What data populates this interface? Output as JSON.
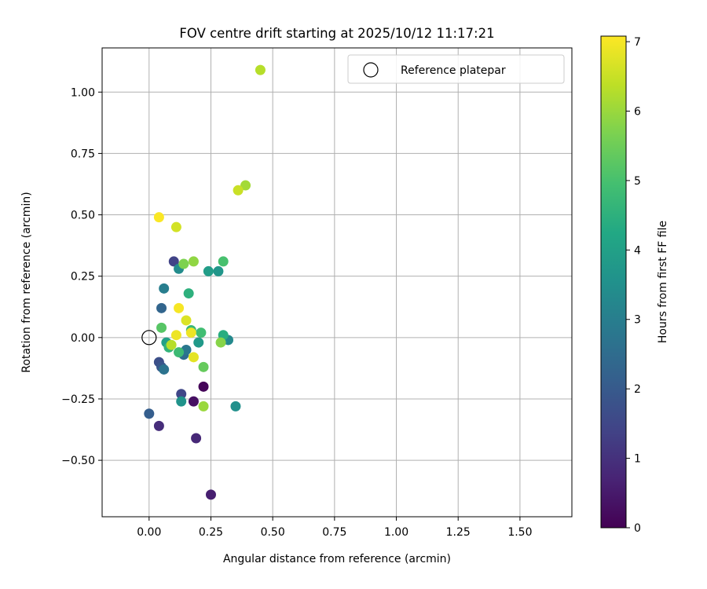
{
  "chart_data": {
    "type": "scatter",
    "title": "FOV centre drift starting at 2025/10/12 11:17:21",
    "xlabel": "Angular distance from reference (arcmin)",
    "ylabel": "Rotation from reference (arcmin)",
    "xlim": [
      -0.19,
      1.71
    ],
    "ylim": [
      -0.73,
      1.18
    ],
    "xticks": [
      0.0,
      0.25,
      0.5,
      0.75,
      1.0,
      1.25,
      1.5
    ],
    "xtick_labels": [
      "0.00",
      "0.25",
      "0.50",
      "0.75",
      "1.00",
      "1.25",
      "1.50"
    ],
    "yticks": [
      -0.5,
      -0.25,
      0.0,
      0.25,
      0.5,
      0.75,
      1.0
    ],
    "ytick_labels": [
      "−0.50",
      "−0.25",
      "0.00",
      "0.25",
      "0.50",
      "0.75",
      "1.00"
    ],
    "grid": true,
    "legend": {
      "position": "top-right",
      "entries": [
        "Reference platepar"
      ]
    },
    "reference_point": {
      "x": 0.0,
      "y": 0.0
    },
    "colorbar": {
      "label": "Hours from first FF file",
      "colormap": "viridis",
      "range": [
        0,
        7.08
      ],
      "ticks": [
        0,
        1,
        2,
        3,
        4,
        5,
        6,
        7
      ],
      "tick_labels": [
        "0",
        "1",
        "2",
        "3",
        "4",
        "5",
        "6",
        "7"
      ]
    },
    "series": [
      {
        "name": "FOV centre drift",
        "points": [
          {
            "x": 0.22,
            "y": -0.2,
            "c": 0.1
          },
          {
            "x": 0.18,
            "y": -0.26,
            "c": 0.3
          },
          {
            "x": 0.25,
            "y": -0.64,
            "c": 0.6
          },
          {
            "x": 0.19,
            "y": -0.41,
            "c": 0.8
          },
          {
            "x": 0.04,
            "y": -0.36,
            "c": 0.9
          },
          {
            "x": 0.1,
            "y": 0.31,
            "c": 1.4
          },
          {
            "x": 0.13,
            "y": -0.23,
            "c": 1.5
          },
          {
            "x": 0.04,
            "y": -0.1,
            "c": 1.7
          },
          {
            "x": 0.05,
            "y": -0.12,
            "c": 1.9
          },
          {
            "x": 0.0,
            "y": -0.31,
            "c": 2.1
          },
          {
            "x": 0.05,
            "y": 0.12,
            "c": 2.3
          },
          {
            "x": 0.14,
            "y": -0.07,
            "c": 2.5
          },
          {
            "x": 0.06,
            "y": -0.13,
            "c": 2.7
          },
          {
            "x": 0.15,
            "y": -0.05,
            "c": 2.8
          },
          {
            "x": 0.06,
            "y": 0.2,
            "c": 3.0
          },
          {
            "x": 0.32,
            "y": -0.01,
            "c": 3.3
          },
          {
            "x": 0.12,
            "y": 0.28,
            "c": 3.4
          },
          {
            "x": 0.35,
            "y": -0.28,
            "c": 3.5
          },
          {
            "x": 0.13,
            "y": -0.26,
            "c": 3.6
          },
          {
            "x": 0.28,
            "y": 0.27,
            "c": 3.7
          },
          {
            "x": 0.2,
            "y": -0.02,
            "c": 3.8
          },
          {
            "x": 0.24,
            "y": 0.27,
            "c": 3.9
          },
          {
            "x": 0.07,
            "y": -0.02,
            "c": 4.0
          },
          {
            "x": 0.3,
            "y": 0.01,
            "c": 4.4
          },
          {
            "x": 0.16,
            "y": 0.18,
            "c": 4.5
          },
          {
            "x": 0.08,
            "y": -0.04,
            "c": 4.6
          },
          {
            "x": 0.17,
            "y": 0.03,
            "c": 4.7
          },
          {
            "x": 0.12,
            "y": -0.06,
            "c": 4.8
          },
          {
            "x": 0.21,
            "y": 0.02,
            "c": 4.9
          },
          {
            "x": 0.3,
            "y": 0.31,
            "c": 5.0
          },
          {
            "x": 0.05,
            "y": 0.04,
            "c": 5.2
          },
          {
            "x": 0.22,
            "y": -0.12,
            "c": 5.4
          },
          {
            "x": 0.14,
            "y": 0.3,
            "c": 5.7
          },
          {
            "x": 0.29,
            "y": -0.02,
            "c": 5.8
          },
          {
            "x": 0.18,
            "y": 0.31,
            "c": 5.9
          },
          {
            "x": 0.22,
            "y": -0.28,
            "c": 6.0
          },
          {
            "x": 0.39,
            "y": 0.62,
            "c": 6.1
          },
          {
            "x": 0.09,
            "y": -0.03,
            "c": 6.3
          },
          {
            "x": 0.45,
            "y": 1.09,
            "c": 6.3
          },
          {
            "x": 0.36,
            "y": 0.6,
            "c": 6.5
          },
          {
            "x": 0.11,
            "y": 0.45,
            "c": 6.6
          },
          {
            "x": 0.15,
            "y": 0.07,
            "c": 6.7
          },
          {
            "x": 0.18,
            "y": -0.08,
            "c": 6.8
          },
          {
            "x": 0.11,
            "y": 0.01,
            "c": 6.9
          },
          {
            "x": 0.17,
            "y": 0.02,
            "c": 6.9
          },
          {
            "x": 0.12,
            "y": 0.12,
            "c": 7.0
          },
          {
            "x": 0.04,
            "y": 0.49,
            "c": 7.05
          }
        ]
      }
    ]
  }
}
